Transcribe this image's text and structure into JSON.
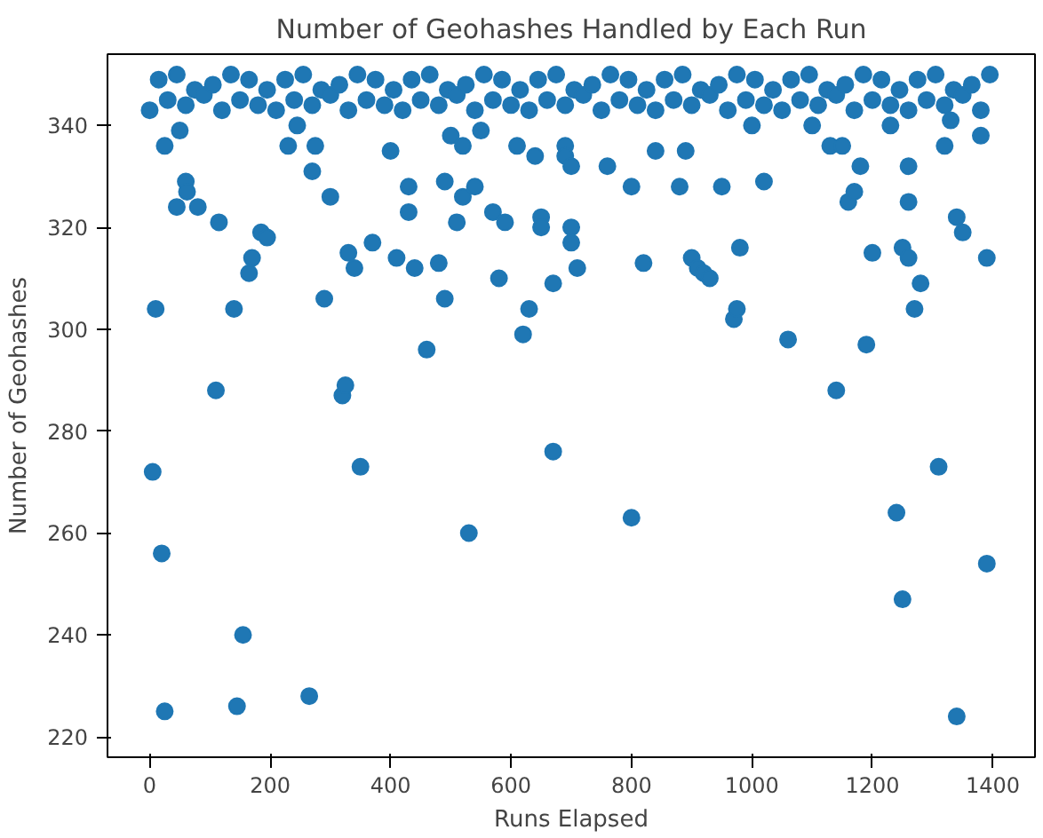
{
  "chart_data": {
    "type": "scatter",
    "title": "Number of Geohashes Handled by Each Run",
    "xlabel": "Runs Elapsed",
    "ylabel": "Number of Geohashes",
    "x": [
      0,
      15,
      30,
      45,
      60,
      75,
      90,
      105,
      120,
      135,
      150,
      165,
      180,
      195,
      210,
      225,
      240,
      255,
      270,
      285,
      300,
      315,
      330,
      345,
      360,
      375,
      390,
      405,
      420,
      435,
      450,
      465,
      480,
      495,
      510,
      525,
      540,
      555,
      570,
      585,
      600,
      615,
      630,
      645,
      660,
      675,
      690,
      705,
      720,
      735,
      750,
      765,
      780,
      795,
      810,
      825,
      840,
      855,
      870,
      885,
      900,
      915,
      930,
      945,
      960,
      975,
      990,
      1005,
      1020,
      1035,
      1050,
      1065,
      1080,
      1095,
      1110,
      1125,
      1140,
      1155,
      1170,
      1185,
      1200,
      1215,
      1230,
      1245,
      1260,
      1275,
      1290,
      1305,
      1320,
      1335,
      1350,
      1365,
      1380,
      1395,
      5,
      10,
      20,
      25,
      25,
      45,
      50,
      60,
      62,
      80,
      110,
      115,
      140,
      145,
      155,
      165,
      170,
      185,
      195,
      230,
      245,
      265,
      270,
      275,
      290,
      300,
      320,
      325,
      330,
      340,
      350,
      370,
      400,
      410,
      430,
      430,
      440,
      460,
      480,
      490,
      490,
      500,
      510,
      520,
      520,
      530,
      540,
      550,
      570,
      580,
      590,
      610,
      620,
      630,
      640,
      650,
      650,
      670,
      670,
      690,
      690,
      700,
      700,
      700,
      710,
      760,
      800,
      800,
      820,
      840,
      880,
      890,
      900,
      910,
      920,
      930,
      950,
      970,
      975,
      980,
      1000,
      1020,
      1060,
      1100,
      1130,
      1140,
      1150,
      1160,
      1170,
      1180,
      1190,
      1200,
      1230,
      1240,
      1250,
      1250,
      1260,
      1260,
      1260,
      1270,
      1280,
      1310,
      1320,
      1330,
      1340,
      1340,
      1350,
      1380,
      1390,
      1390
    ],
    "values": [
      343,
      349,
      345,
      350,
      344,
      347,
      346,
      348,
      343,
      350,
      345,
      349,
      344,
      347,
      343,
      349,
      345,
      350,
      344,
      347,
      346,
      348,
      343,
      350,
      345,
      349,
      344,
      347,
      343,
      349,
      345,
      350,
      344,
      347,
      346,
      348,
      343,
      350,
      345,
      349,
      344,
      347,
      343,
      349,
      345,
      350,
      344,
      347,
      346,
      348,
      343,
      350,
      345,
      349,
      344,
      347,
      343,
      349,
      345,
      350,
      344,
      347,
      346,
      348,
      343,
      350,
      345,
      349,
      344,
      347,
      343,
      349,
      345,
      350,
      344,
      347,
      346,
      348,
      343,
      350,
      345,
      349,
      344,
      347,
      343,
      349,
      345,
      350,
      344,
      347,
      346,
      348,
      343,
      350,
      272,
      304,
      256,
      225,
      336,
      324,
      339,
      329,
      327,
      324,
      288,
      321,
      304,
      226,
      240,
      311,
      314,
      319,
      318,
      336,
      340,
      228,
      331,
      336,
      306,
      326,
      287,
      289,
      315,
      312,
      273,
      317,
      335,
      314,
      328,
      323,
      312,
      296,
      313,
      306,
      329,
      338,
      321,
      326,
      336,
      260,
      328,
      339,
      323,
      310,
      321,
      336,
      299,
      304,
      334,
      322,
      320,
      276,
      309,
      336,
      334,
      332,
      317,
      320,
      312,
      332,
      263,
      328,
      313,
      335,
      328,
      335,
      314,
      312,
      311,
      310,
      328,
      302,
      304,
      316,
      340,
      329,
      298,
      340,
      336,
      288,
      336,
      325,
      327,
      332,
      297,
      315,
      340,
      264,
      316,
      247,
      314,
      325,
      332,
      304,
      309,
      273,
      336,
      341,
      224,
      322,
      319,
      338,
      314,
      254
    ],
    "color": "#1f77b4",
    "marker": "circle",
    "grid": false,
    "xlim": [
      -70,
      1470
    ],
    "ylim": [
      216,
      354
    ],
    "xticks": [
      0,
      200,
      400,
      600,
      800,
      1000,
      1200,
      1400
    ],
    "yticks": [
      220,
      240,
      260,
      280,
      300,
      320,
      340
    ]
  }
}
